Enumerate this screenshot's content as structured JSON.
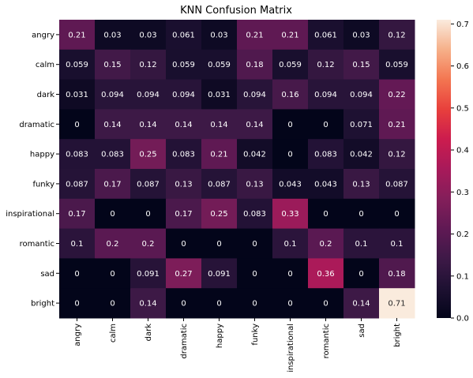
{
  "chart_data": {
    "type": "heatmap",
    "title": "KNN Confusion Matrix",
    "xlabel": "",
    "ylabel": "",
    "row_labels": [
      "angry",
      "calm",
      "dark",
      "dramatic",
      "happy",
      "funky",
      "inspirational",
      "romantic",
      "sad",
      "bright"
    ],
    "col_labels": [
      "angry",
      "calm",
      "dark",
      "dramatic",
      "happy",
      "funky",
      "inspirational",
      "romantic",
      "sad",
      "bright"
    ],
    "values": [
      [
        0.21,
        0.03,
        0.03,
        0.061,
        0.03,
        0.21,
        0.21,
        0.061,
        0.03,
        0.12
      ],
      [
        0.059,
        0.15,
        0.12,
        0.059,
        0.059,
        0.18,
        0.059,
        0.12,
        0.15,
        0.059
      ],
      [
        0.031,
        0.094,
        0.094,
        0.094,
        0.031,
        0.094,
        0.16,
        0.094,
        0.094,
        0.22
      ],
      [
        0,
        0.14,
        0.14,
        0.14,
        0.14,
        0.14,
        0,
        0,
        0.071,
        0.21
      ],
      [
        0.083,
        0.083,
        0.25,
        0.083,
        0.21,
        0.042,
        0,
        0.083,
        0.042,
        0.12
      ],
      [
        0.087,
        0.17,
        0.087,
        0.13,
        0.087,
        0.13,
        0.043,
        0.043,
        0.13,
        0.087
      ],
      [
        0.17,
        0,
        0,
        0.17,
        0.25,
        0.083,
        0.33,
        0,
        0,
        0
      ],
      [
        0.1,
        0.2,
        0.2,
        0,
        0,
        0,
        0.1,
        0.2,
        0.1,
        0.1
      ],
      [
        0,
        0,
        0.091,
        0.27,
        0.091,
        0,
        0,
        0.36,
        0,
        0.18
      ],
      [
        0,
        0,
        0.14,
        0,
        0,
        0,
        0,
        0,
        0.14,
        0.71
      ]
    ],
    "vmin": 0,
    "vmax": 0.71,
    "colormap": "rocket",
    "colorbar_ticks": [
      0.0,
      0.1,
      0.2,
      0.3,
      0.4,
      0.5,
      0.6,
      0.7
    ],
    "colorbar_tick_labels": [
      "0.0",
      "0.1",
      "0.2",
      "0.3",
      "0.4",
      "0.5",
      "0.6",
      "0.7"
    ]
  }
}
